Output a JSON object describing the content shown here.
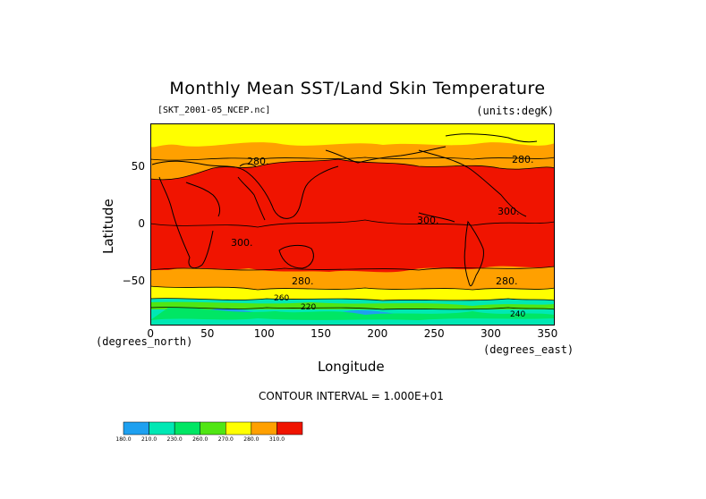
{
  "title": "Monthly Mean SST/Land Skin Temperature",
  "subtitle": "[SKT_2001-05_NCEP.nc]",
  "units": "(units:degK)",
  "chart_data": {
    "type": "heatmap",
    "title": "Monthly Mean SST/Land Skin Temperature",
    "xlabel": "Longitude",
    "ylabel": "Latitude",
    "x_unit_label": "(degrees_east)",
    "y_unit_label": "(degrees_north)",
    "xlim": [
      0,
      357
    ],
    "ylim": [
      -88,
      88
    ],
    "x_ticks": [
      "0",
      "50",
      "100",
      "150",
      "200",
      "250",
      "300",
      "350"
    ],
    "y_ticks": [
      "50",
      "0",
      "−50"
    ],
    "contour_interval_text": "CONTOUR INTERVAL = 1.000E+01",
    "contour_labels": [
      "280.",
      "280.",
      "300.",
      "300.",
      "300.",
      "280.",
      "280.",
      "260",
      "240",
      "220",
      "240"
    ],
    "colorbar": {
      "bins": [
        {
          "label": "180.0",
          "color": "#1ea0f0"
        },
        {
          "label": "210.0",
          "color": "#00e8b4"
        },
        {
          "label": "230.0",
          "color": "#00e664"
        },
        {
          "label": "260.0",
          "color": "#50e614"
        },
        {
          "label": "270.0",
          "color": "#ffff00"
        },
        {
          "label": "280.0",
          "color": "#ffa000"
        },
        {
          "label": "310.0",
          "color": "#f01400"
        }
      ]
    },
    "bands": [
      {
        "lat_range": [
          65,
          88
        ],
        "color": "#ffff00",
        "approx_value": "270-280"
      },
      {
        "lat_range": [
          45,
          65
        ],
        "color": "#ffa000",
        "approx_value": "280-290"
      },
      {
        "lat_range": [
          -40,
          45
        ],
        "color": "#f01400",
        "approx_value": ">290"
      },
      {
        "lat_range": [
          -58,
          -40
        ],
        "color": "#ffa000",
        "approx_value": "280-290"
      },
      {
        "lat_range": [
          -65,
          -58
        ],
        "color": "#ffff00",
        "approx_value": "270-280"
      },
      {
        "lat_range": [
          -88,
          -65
        ],
        "color": "#00e8b4",
        "approx_value": "210-260"
      }
    ]
  }
}
